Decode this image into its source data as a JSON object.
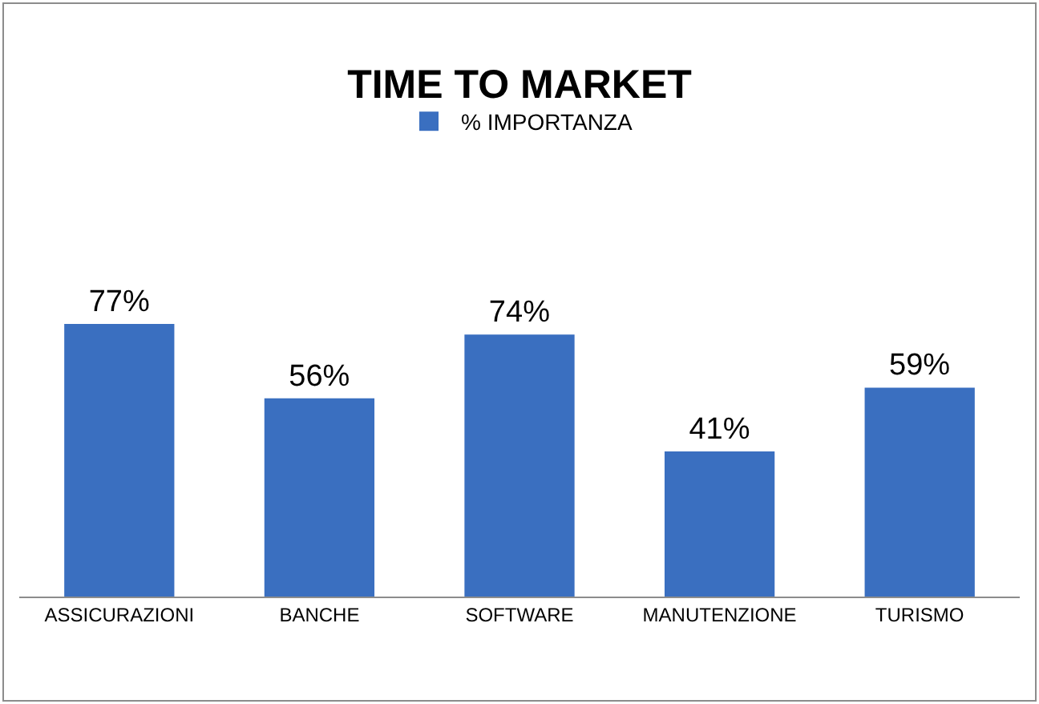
{
  "chart_data": {
    "type": "bar",
    "title": "TIME TO MARKET",
    "categories": [
      "ASSICURAZIONI",
      "BANCHE",
      "SOFTWARE",
      "MANUTENZIONE",
      "TURISMO"
    ],
    "series": [
      {
        "name": "% IMPORTANZA",
        "color": "#3a6fc0",
        "values": [
          77,
          56,
          74,
          41,
          59
        ],
        "value_labels": [
          "77%",
          "56%",
          "74%",
          "41%",
          "59%"
        ]
      }
    ],
    "legend": "top"
  }
}
